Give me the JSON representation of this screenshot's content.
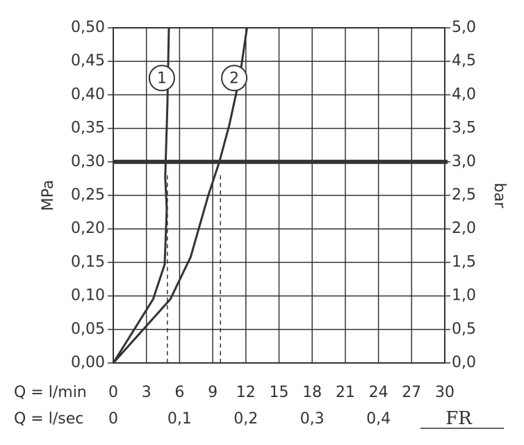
{
  "chart_data": {
    "type": "line",
    "y_label": "MPa",
    "y2_label": "bar",
    "x_label": "Q = l/min",
    "x2_label": "Q = l/sec",
    "logo": "FR",
    "xlim": [
      0,
      30
    ],
    "ylim": [
      0,
      0.5
    ],
    "y2lim": [
      0,
      5
    ],
    "xticks": [
      0,
      3,
      6,
      9,
      12,
      15,
      18,
      21,
      24,
      27,
      30
    ],
    "x2ticks": [
      {
        "value": 0,
        "label": "0"
      },
      {
        "value": 6,
        "label": "0,1"
      },
      {
        "value": 12,
        "label": "0,2"
      },
      {
        "value": 18,
        "label": "0,3"
      },
      {
        "value": 24,
        "label": "0,4"
      }
    ],
    "yticks": [
      {
        "value": 0,
        "label": "0,00"
      },
      {
        "value": 0.05,
        "label": "0,05"
      },
      {
        "value": 0.1,
        "label": "0,10"
      },
      {
        "value": 0.15,
        "label": "0,15"
      },
      {
        "value": 0.2,
        "label": "0,20"
      },
      {
        "value": 0.25,
        "label": "0,25"
      },
      {
        "value": 0.3,
        "label": "0,30"
      },
      {
        "value": 0.35,
        "label": "0,35"
      },
      {
        "value": 0.4,
        "label": "0,40"
      },
      {
        "value": 0.45,
        "label": "0,45"
      },
      {
        "value": 0.5,
        "label": "0,50"
      }
    ],
    "y2ticks": [
      {
        "value": 0,
        "label": "0,0"
      },
      {
        "value": 0.5,
        "label": "0,5"
      },
      {
        "value": 1,
        "label": "1,0"
      },
      {
        "value": 1.5,
        "label": "1,5"
      },
      {
        "value": 2,
        "label": "2,0"
      },
      {
        "value": 2.5,
        "label": "2,5"
      },
      {
        "value": 3,
        "label": "3,0"
      },
      {
        "value": 3.5,
        "label": "3,5"
      },
      {
        "value": 4,
        "label": "4,0"
      },
      {
        "value": 4.5,
        "label": "4,5"
      },
      {
        "value": 5,
        "label": "5,0"
      }
    ],
    "grid": true,
    "reference_y": 0.3,
    "reference_x": [
      4.9,
      9.7
    ],
    "reference_x_top": 0.28,
    "series": [
      {
        "name": "1",
        "color": "#333333",
        "x": [
          0,
          3.6,
          4.65,
          4.84,
          4.7,
          4.9,
          5.03
        ],
        "values": [
          0,
          0.095,
          0.147,
          0.23,
          0.277,
          0.386,
          0.5
        ]
      },
      {
        "name": "2",
        "color": "#333333",
        "x": [
          0,
          5.16,
          7.0,
          8.6,
          9.6,
          10.5,
          11.45,
          12.1
        ],
        "values": [
          0,
          0.095,
          0.158,
          0.25,
          0.3,
          0.355,
          0.427,
          0.5
        ]
      }
    ]
  }
}
